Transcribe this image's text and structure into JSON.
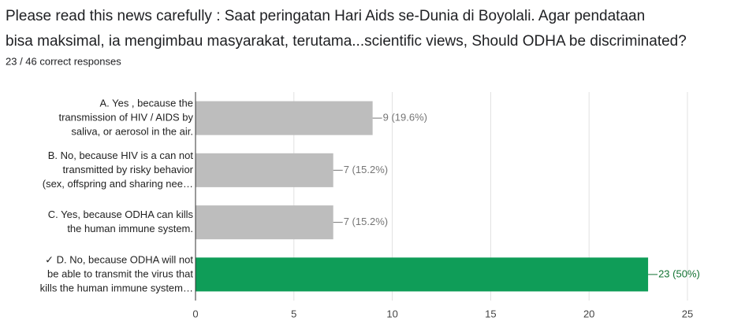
{
  "chart_data": {
    "type": "hbar",
    "title": [
      "Please read this news carefully : Saat peringatan Hari Aids se-Dunia di Boyolali. Agar pendataan",
      "bisa maksimal, ia mengimbau masyarakat, terutama...scientific views, Should ODHA be discriminated?"
    ],
    "subtitle": "23 / 46 correct responses",
    "categories": [
      [
        "A. Yes , because the",
        "transmission of HIV / AIDS by",
        "saliva, or aerosol in the air."
      ],
      [
        "B. No, because HIV is a can not",
        "transmitted by risky behavior",
        "(sex, offspring and sharing nee…"
      ],
      [
        "C. Yes, because ODHA can kills",
        "the human immune system."
      ],
      [
        "✓ D. No, because ODHA will not",
        "be able to transmit the virus that",
        "kills the human immune system…"
      ]
    ],
    "values": [
      9,
      7,
      7,
      23
    ],
    "value_labels": [
      "9 (19.6%)",
      "7 (15.2%)",
      "7 (15.2%)",
      "23 (50%)"
    ],
    "colors": [
      "#bdbdbd",
      "#bdbdbd",
      "#bdbdbd",
      "#0f9d58"
    ],
    "value_label_colors": [
      "#757575",
      "#757575",
      "#757575",
      "#137333"
    ],
    "xlim": [
      0,
      25
    ],
    "xticks": [
      0,
      5,
      10,
      15,
      20,
      25
    ],
    "grid": true
  }
}
